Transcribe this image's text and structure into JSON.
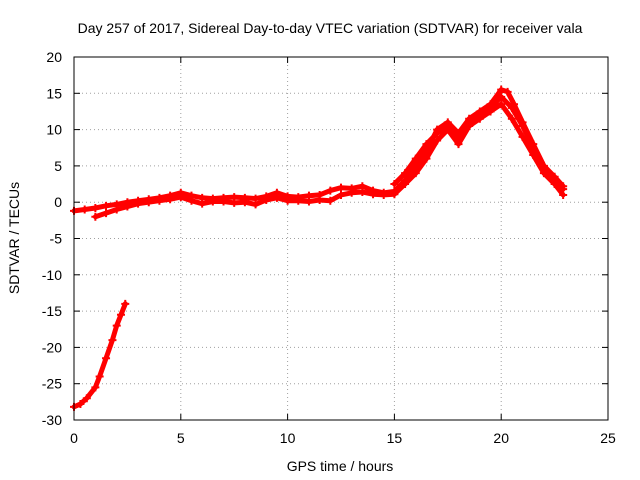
{
  "chart_data": {
    "type": "scatter",
    "title": "Day 257 of 2017, Sidereal Day-to-day VTEC variation (SDTVAR) for receiver vala",
    "xlabel": "GPS time / hours",
    "ylabel": "SDTVAR / TECUs",
    "xlim": [
      0,
      25
    ],
    "ylim": [
      -30,
      20
    ],
    "x_ticks": [
      0,
      5,
      10,
      15,
      20,
      25
    ],
    "y_ticks": [
      -30,
      -25,
      -20,
      -15,
      -10,
      -5,
      0,
      5,
      10,
      15,
      20
    ],
    "x_tick_labels": [
      "0",
      "5",
      "10",
      "15",
      "20",
      "25"
    ],
    "y_tick_labels": [
      "-30",
      "-25",
      "-20",
      "-15",
      "-10",
      "-5",
      "0",
      "5",
      "10",
      "15",
      "20"
    ],
    "grid": true,
    "marker": "plus",
    "color": "#ff0000",
    "series": [
      {
        "name": "main-a",
        "x": [
          0,
          0.5,
          1,
          1.5,
          2,
          2.5,
          3,
          3.5,
          4,
          4.5,
          5,
          5.5,
          6,
          6.5,
          7,
          7.5,
          8,
          8.5,
          9,
          9.5,
          10,
          10.5,
          11,
          11.5,
          12,
          12.5,
          13,
          13.5,
          14,
          14.5,
          15,
          15.5,
          16,
          16.5,
          17,
          17.5,
          18,
          18.5,
          19,
          19.5,
          20,
          20.3,
          20.6,
          21,
          21.5,
          22,
          22.5,
          22.9
        ],
        "y": [
          -1.2,
          -1,
          -0.8,
          -0.5,
          -0.3,
          0,
          0.2,
          0.4,
          0.6,
          0.9,
          1.3,
          0.9,
          0.6,
          0.5,
          0.6,
          0.7,
          0.6,
          0.5,
          0.8,
          1.3,
          0.8,
          0.7,
          0.9,
          1,
          1.6,
          2,
          1.9,
          2.2,
          1.6,
          1.3,
          1.5,
          3,
          5,
          7,
          10,
          11,
          9.5,
          11.5,
          12.5,
          13.5,
          15.5,
          15.2,
          13.5,
          11,
          8,
          5,
          3.5,
          2.2
        ]
      },
      {
        "name": "main-b",
        "x": [
          1,
          1.5,
          2,
          2.5,
          3,
          3.5,
          4,
          4.5,
          5,
          5.5,
          6,
          6.5,
          7,
          7.5,
          8,
          8.5,
          9,
          9.5,
          10,
          10.5,
          11,
          11.5,
          12,
          12.5,
          13,
          13.5,
          14,
          14.5,
          15,
          15.5,
          16,
          16.5,
          17,
          17.5,
          18,
          18.5,
          19,
          19.5,
          20,
          20.5,
          21,
          21.5,
          22,
          22.5,
          22.9
        ],
        "y": [
          -2,
          -1.5,
          -1,
          -0.6,
          -0.2,
          0,
          0.2,
          0.4,
          0.7,
          0.2,
          -0.2,
          0.1,
          0.1,
          -0.1,
          0,
          -0.3,
          0.3,
          0.6,
          0.2,
          0.2,
          0.1,
          0.3,
          0.2,
          1,
          1.3,
          1.4,
          1.1,
          1,
          1.1,
          2.5,
          4,
          6,
          8.5,
          10,
          8,
          10.5,
          11.5,
          12.5,
          13.5,
          11.5,
          9,
          6.5,
          4,
          2.5,
          1
        ]
      },
      {
        "name": "main-c",
        "x": [
          15,
          15.5,
          16,
          16.5,
          17,
          17.5,
          18,
          18.5,
          19,
          19.5,
          20,
          20.5,
          21,
          21.5,
          22,
          22.5,
          22.9
        ],
        "y": [
          2.5,
          4,
          6,
          8,
          9.5,
          10.5,
          9,
          11,
          12,
          13,
          14.5,
          13,
          10.5,
          7.5,
          4.5,
          3,
          1.8
        ]
      },
      {
        "name": "early-dip",
        "x": [
          0,
          0.3,
          0.6,
          1,
          1.2,
          1.5,
          1.8,
          2,
          2.2,
          2.4
        ],
        "y": [
          -28.2,
          -27.8,
          -27,
          -25.5,
          -24,
          -21.5,
          -19,
          -17,
          -15.5,
          -14
        ]
      }
    ]
  }
}
